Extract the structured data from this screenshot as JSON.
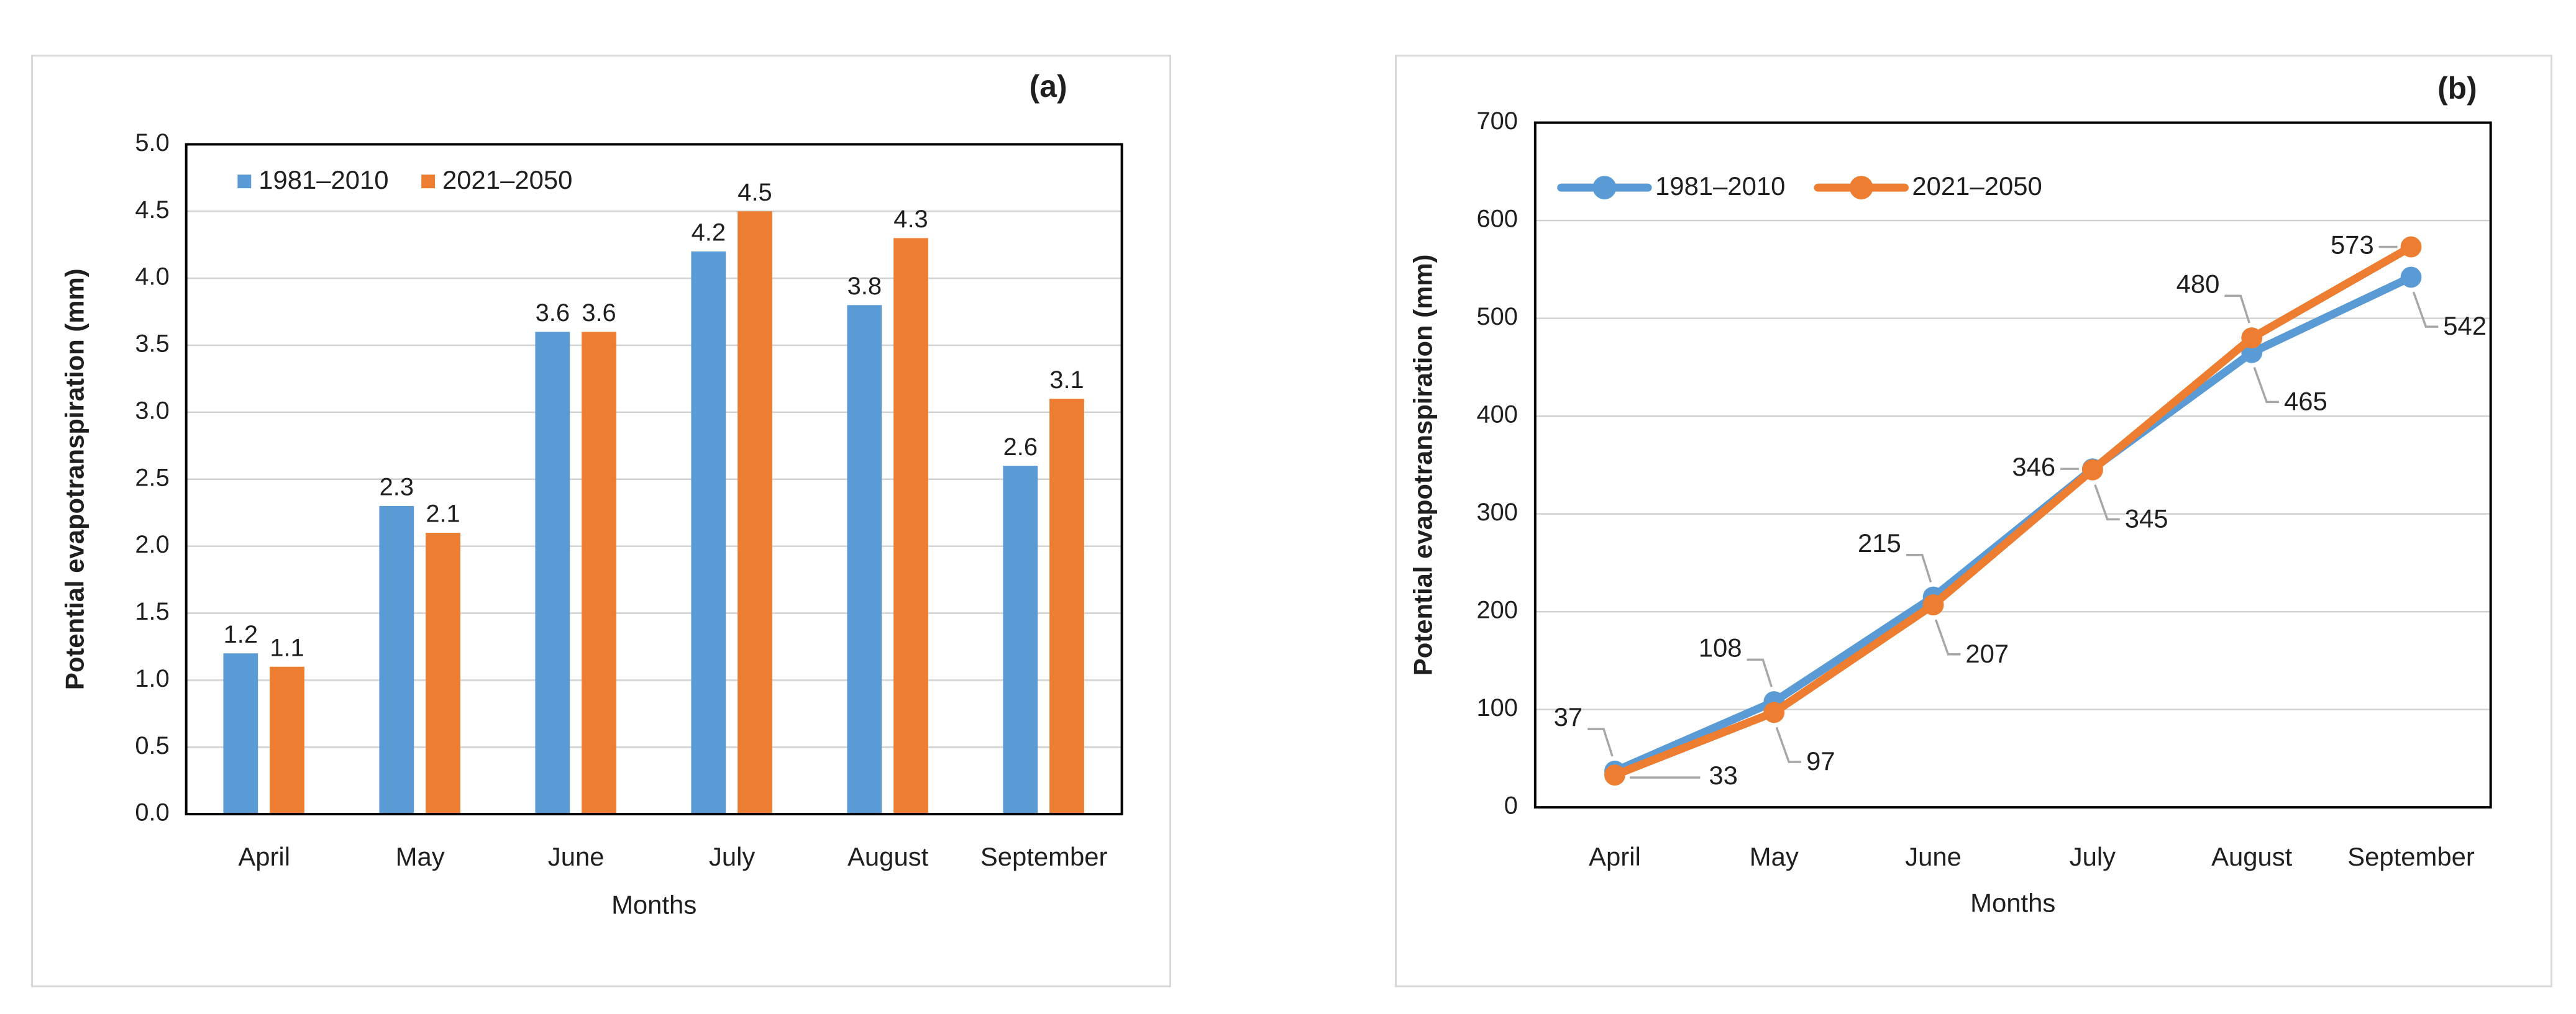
{
  "figure": {
    "description_texts": {
      "y_axis_title": "Potential evapotranspiration (mm)",
      "x_axis_title": "Months"
    }
  },
  "colors": {
    "series_blue": "#5B9BD5",
    "series_orange": "#ED7D31",
    "gridline": "#D2D2D2",
    "axis_frame": "#000000",
    "leader_line": "#A6A6A6",
    "text": "#1F1F1F",
    "panel_border": "#D9D9D9"
  },
  "chart_data": [
    {
      "id": "a",
      "type": "bar",
      "corner_label": "(a)",
      "xlabel": "Months",
      "ylabel": "Potential evapotranspiration (mm)",
      "categories": [
        "April",
        "May",
        "June",
        "July",
        "August",
        "September"
      ],
      "series": [
        {
          "name": "1981–2010",
          "color": "#5B9BD5",
          "values": [
            1.2,
            2.3,
            3.6,
            4.2,
            3.8,
            2.6
          ]
        },
        {
          "name": "2021–2050",
          "color": "#ED7D31",
          "values": [
            1.1,
            2.1,
            3.6,
            4.5,
            4.3,
            3.1
          ]
        }
      ],
      "ylim": [
        0,
        5
      ],
      "ytick_step": 0.5,
      "ytick_decimals": 1,
      "label_decimals": 1,
      "grid": true,
      "legend_position": "top-inside",
      "data_labels": "above-bars"
    },
    {
      "id": "b",
      "type": "line",
      "corner_label": "(b)",
      "xlabel": "Months",
      "ylabel": "Potential evapotranspiration (mm)",
      "categories": [
        "April",
        "May",
        "June",
        "July",
        "August",
        "September"
      ],
      "series": [
        {
          "name": "1981–2010",
          "color": "#5B9BD5",
          "values": [
            37,
            108,
            215,
            346,
            465,
            542
          ],
          "label_sides": [
            "above-left",
            "above-left",
            "above-left",
            "left",
            "below-right",
            "below-right"
          ]
        },
        {
          "name": "2021–2050",
          "color": "#ED7D31",
          "values": [
            33,
            97,
            207,
            345,
            480,
            573
          ],
          "label_sides": [
            "right",
            "below-right",
            "below-right",
            "below-right",
            "above-left",
            "left"
          ]
        }
      ],
      "ylim": [
        0,
        700
      ],
      "ytick_step": 100,
      "ytick_decimals": 0,
      "label_decimals": 0,
      "grid": true,
      "legend_position": "top-inside",
      "marker": "circle"
    }
  ]
}
